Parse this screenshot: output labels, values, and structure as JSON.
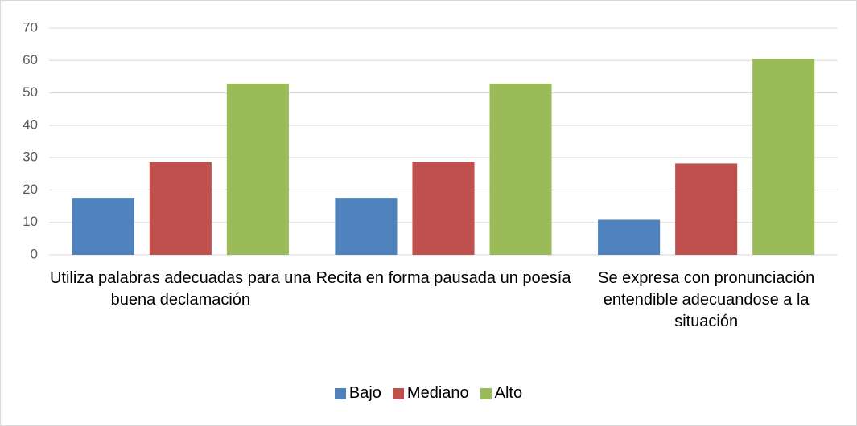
{
  "chart_data": {
    "type": "bar",
    "categories": [
      "Utiliza palabras adecuadas para una buena declamación",
      "Recita en forma pausada un poesía",
      "Se expresa con pronunciación entendible adecuandose a la situación"
    ],
    "series": [
      {
        "name": "Bajo",
        "color": "#4f81bd",
        "values": [
          17.6,
          17.6,
          10.8
        ]
      },
      {
        "name": "Mediano",
        "color": "#c0504d",
        "values": [
          28.6,
          28.6,
          28.2
        ]
      },
      {
        "name": "Alto",
        "color": "#9bbb59",
        "values": [
          52.9,
          52.9,
          60.5
        ]
      }
    ],
    "ylim": [
      0,
      70
    ],
    "yticks": [
      0,
      10,
      20,
      30,
      40,
      50,
      60,
      70
    ],
    "grid": true,
    "legend": "bottom"
  }
}
